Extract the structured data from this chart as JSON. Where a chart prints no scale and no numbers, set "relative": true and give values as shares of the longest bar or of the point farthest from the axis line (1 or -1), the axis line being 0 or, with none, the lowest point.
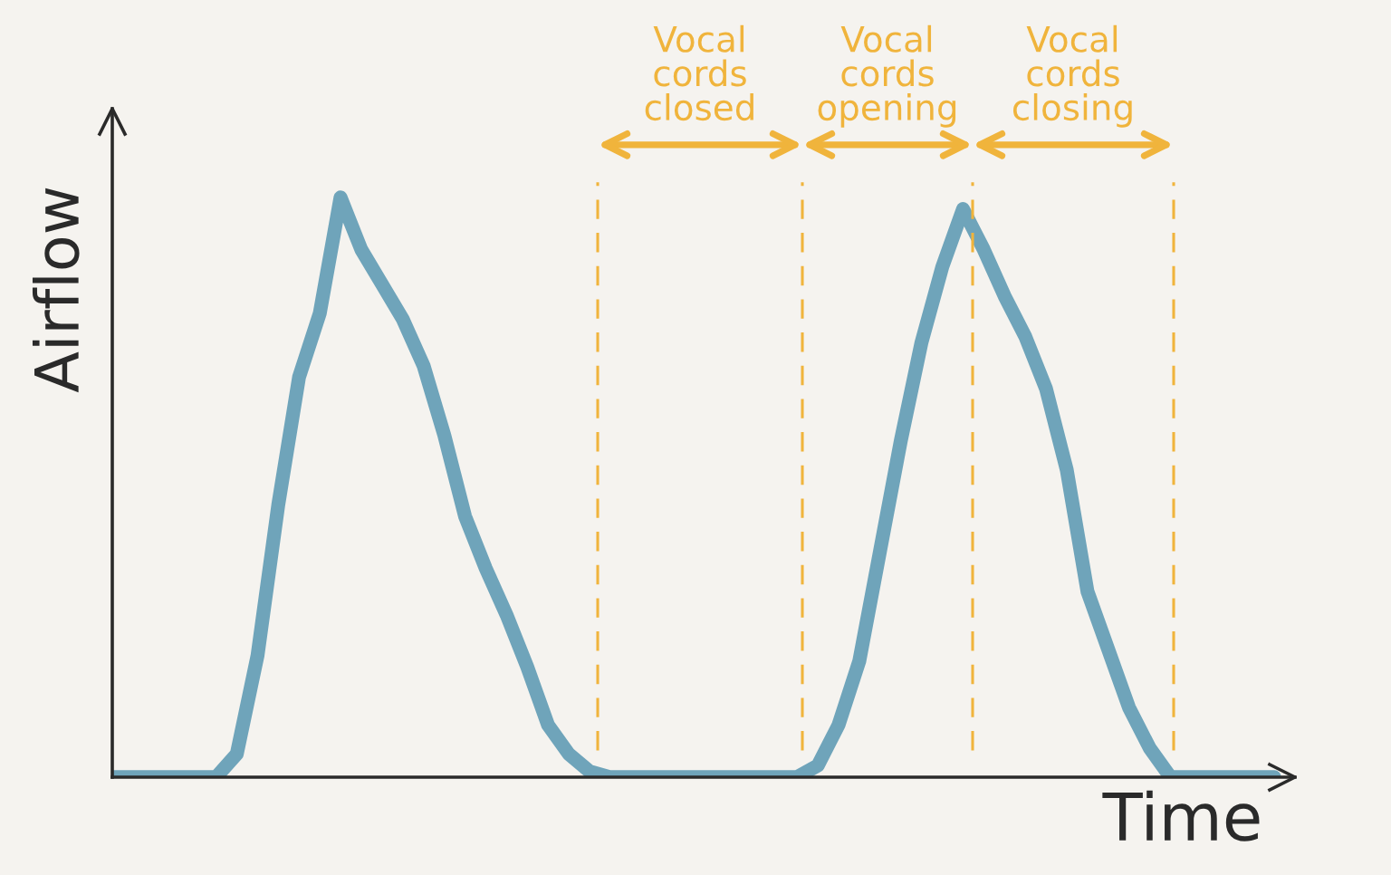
{
  "chart_data": {
    "type": "line",
    "relative": true,
    "xlabel": "Time",
    "ylabel": "Airflow",
    "categories": [
      null,
      null,
      null,
      null,
      null,
      null,
      null,
      null,
      null,
      null,
      null,
      null,
      null,
      null,
      null,
      null,
      null,
      null,
      null,
      null,
      null,
      null,
      null,
      null,
      null,
      null,
      null,
      null,
      null,
      null,
      null,
      null,
      null,
      null,
      null,
      null,
      null,
      null,
      null,
      null,
      null,
      null,
      null,
      null,
      null,
      null,
      null,
      null,
      null,
      null,
      null,
      null,
      null,
      null,
      null,
      null,
      null
    ],
    "series": [
      {
        "color": "#6fa4ba",
        "values": [
          0,
          0,
          0,
          0,
          0,
          0,
          0.04,
          0.21,
          0.47,
          0.69,
          0.8,
          1,
          0.91,
          0.85,
          0.79,
          0.71,
          0.59,
          0.45,
          0.36,
          0.28,
          0.19,
          0.09,
          0.04,
          0.01,
          0,
          0,
          0,
          0,
          0,
          0,
          0,
          0,
          0,
          0,
          0.02,
          0.09,
          0.2,
          0.39,
          0.58,
          0.75,
          0.88,
          0.98,
          0.91,
          0.83,
          0.76,
          0.67,
          0.53,
          0.32,
          0.22,
          0.12,
          0.05,
          0,
          0,
          0,
          0,
          0,
          0
        ]
      }
    ],
    "annotations": [
      "Vocal\ncords\nclosed",
      "Vocal\ncords\nopening",
      "Vocal\ncords\nclosing"
    ]
  }
}
